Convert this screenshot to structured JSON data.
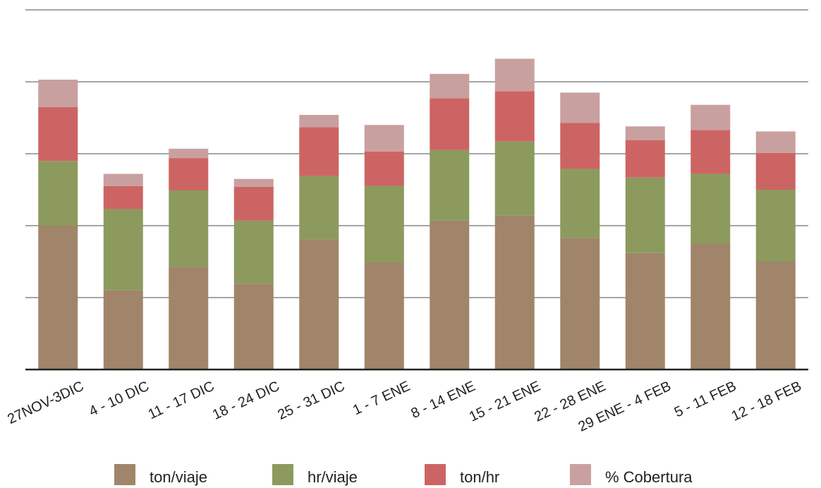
{
  "chart_data": {
    "type": "bar",
    "stacked": true,
    "categories": [
      "27NOV-3DIC",
      "4 - 10 DIC",
      "11 - 17 DIC",
      "18 - 24 DIC",
      "25 - 31 DIC",
      "1 - 7 ENE",
      "8 - 14 ENE",
      "15 - 21 ENE",
      "22 - 28 ENE",
      "29 ENE - 4 FEB",
      "5 - 11 FEB",
      "12 - 18 FEB"
    ],
    "series": [
      {
        "name": "ton/viaje",
        "color": "#a0856a",
        "values": [
          2.0,
          1.1,
          1.43,
          1.19,
          1.81,
          1.49,
          2.07,
          2.14,
          1.83,
          1.62,
          1.75,
          1.5
        ]
      },
      {
        "name": "hr/viaje",
        "color": "#8c9a5e",
        "values": [
          0.9,
          1.13,
          1.06,
          0.88,
          0.88,
          1.06,
          0.98,
          1.03,
          0.96,
          1.05,
          0.97,
          1.0
        ]
      },
      {
        "name": "ton/hr",
        "color": "#cd6464",
        "values": [
          0.75,
          0.32,
          0.45,
          0.47,
          0.68,
          0.48,
          0.72,
          0.7,
          0.64,
          0.52,
          0.61,
          0.51
        ]
      },
      {
        "name": "% Cobertura",
        "color": "#c9a0a0",
        "values": [
          0.38,
          0.17,
          0.13,
          0.11,
          0.17,
          0.37,
          0.34,
          0.45,
          0.42,
          0.19,
          0.35,
          0.3
        ]
      }
    ],
    "ylim": [
      0,
      5
    ],
    "grid": true,
    "legend_position": "bottom",
    "title": "",
    "xlabel": "",
    "ylabel": ""
  }
}
